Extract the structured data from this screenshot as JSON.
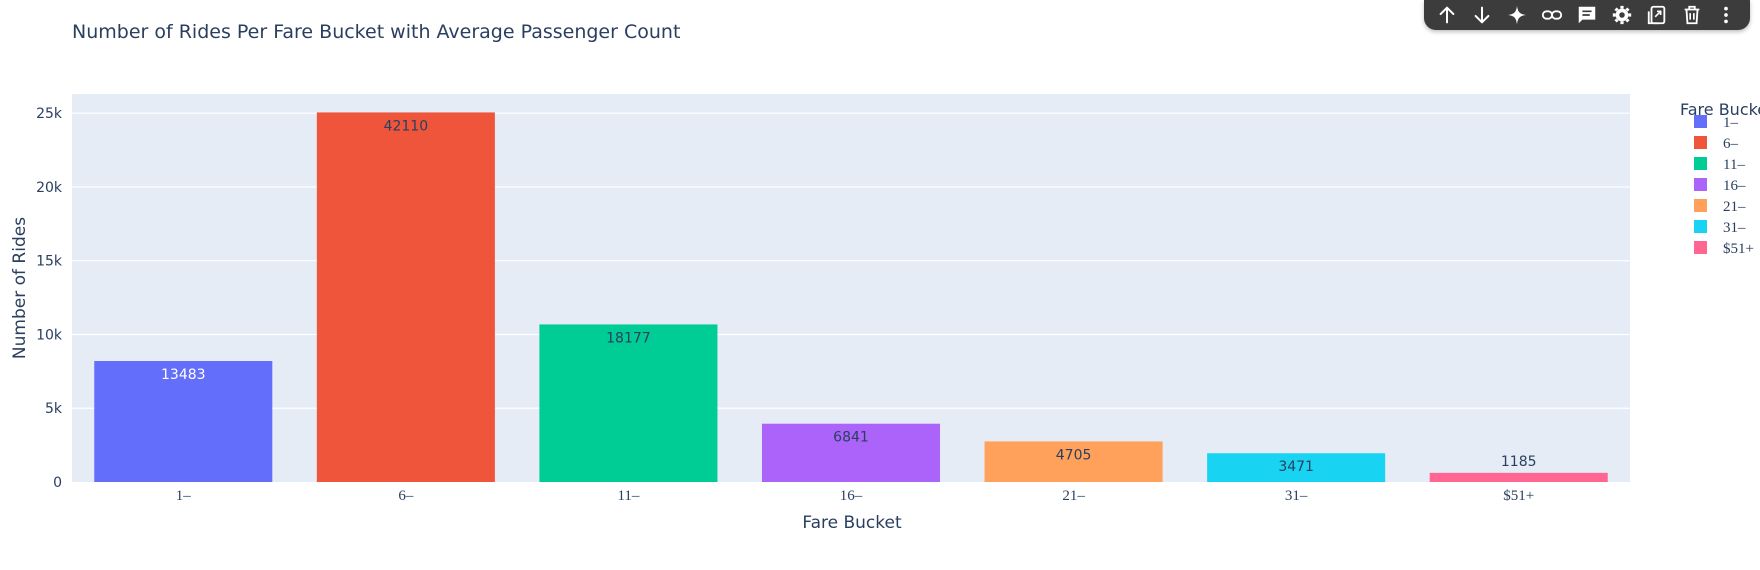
{
  "toolbar": {
    "icons": [
      "arrow-up-icon",
      "arrow-down-icon",
      "sparkle-icon",
      "link-icon",
      "comment-icon",
      "settings-icon",
      "copy-to-sheet-icon",
      "delete-icon",
      "more-vert-icon"
    ]
  },
  "chart_data": {
    "type": "bar",
    "title": "Number of Rides Per Fare Bucket with Average Passenger Count",
    "xlabel": "Fare Bucket",
    "ylabel": "Number of Rides",
    "ylim": [
      0,
      26300
    ],
    "yticks": [
      0,
      5000,
      10000,
      15000,
      20000,
      25000
    ],
    "ytick_labels": [
      "0",
      "5k",
      "10k",
      "15k",
      "20k",
      "25k"
    ],
    "grid": true,
    "legend": {
      "title": "Fare Bucket",
      "placement": "right"
    },
    "categories": [
      "1–",
      "6–",
      "11–",
      "16–",
      "21–",
      "31–",
      "$51+"
    ],
    "values": [
      8200,
      25050,
      10680,
      3950,
      2750,
      1950,
      620
    ],
    "bar_labels": [
      "13483",
      "42110",
      "18177",
      "6841",
      "4705",
      "3471",
      "1185"
    ],
    "colors": [
      "#636efa",
      "#EF553B",
      "#00cc96",
      "#ab63fa",
      "#FFA15A",
      "#19d3f3",
      "#FF6692"
    ],
    "label_colors": [
      "#ffffff",
      "#2a3f5f",
      "#2a3f5f",
      "#2a3f5f",
      "#2a3f5f",
      "#2a3f5f",
      "#2a3f5f"
    ],
    "label_outside": [
      false,
      false,
      false,
      false,
      false,
      false,
      true
    ]
  }
}
